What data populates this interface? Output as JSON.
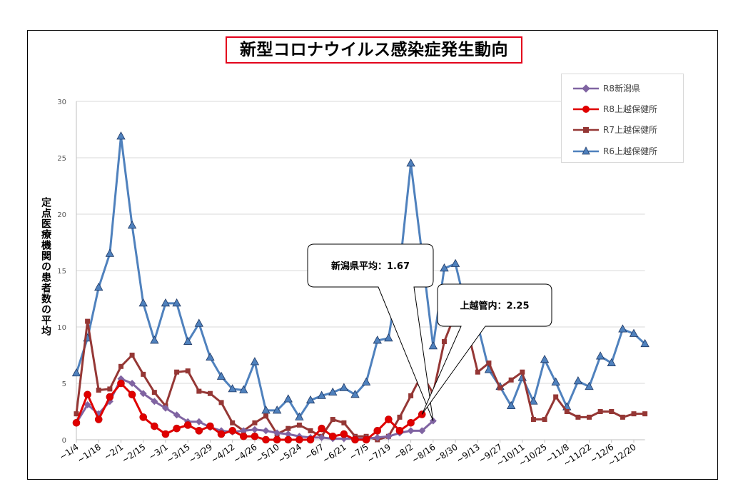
{
  "chart_data": {
    "type": "line",
    "title": "新型コロナウイルス感染症発生動向",
    "ylabel": "定点医療機関の患者数の平均",
    "xlabel": "",
    "ylim": [
      0,
      30
    ],
    "yticks": [
      0,
      5,
      10,
      15,
      20,
      25,
      30
    ],
    "grid": true,
    "legend_position": "top-right",
    "x_tick_labels": [
      "~1/4",
      "~1/18",
      "~2/1",
      "~2/15",
      "~3/1",
      "~3/15",
      "~3/29",
      "~4/12",
      "~4/26",
      "~5/10",
      "~5/24",
      "~6/7",
      "~6/21",
      "~7/5",
      "~7/19",
      "~8/2",
      "~8/16",
      "~8/30",
      "~9/13",
      "~9/27",
      "~10/11",
      "~10/25",
      "~11/8",
      "~11/22",
      "~12/6",
      "~12/20"
    ],
    "series": [
      {
        "name": "R8新潟県",
        "color": "#8064a2",
        "marker": "diamond",
        "values": [
          1.5,
          3.1,
          2.3,
          3.4,
          5.4,
          5.0,
          4.1,
          3.4,
          2.8,
          2.2,
          1.6,
          1.6,
          1.1,
          0.8,
          0.7,
          0.8,
          0.9,
          0.8,
          0.6,
          0.5,
          0.3,
          0.2,
          0.2,
          0.1,
          0.1,
          0.1,
          0.1,
          0.2,
          0.3,
          0.6,
          0.8,
          0.8,
          1.67
        ]
      },
      {
        "name": "R8上越保健所",
        "color": "#e00000",
        "marker": "circle",
        "values": [
          1.5,
          4.0,
          1.8,
          3.8,
          5.0,
          4.0,
          2.0,
          1.2,
          0.5,
          1.0,
          1.3,
          0.8,
          1.2,
          0.5,
          0.8,
          0.3,
          0.3,
          0.0,
          0.0,
          0.0,
          0.0,
          0.0,
          1.0,
          0.3,
          0.5,
          0.0,
          0.0,
          0.8,
          1.8,
          0.8,
          1.5,
          2.25
        ]
      },
      {
        "name": "R7上越保健所",
        "color": "#953735",
        "marker": "square",
        "values": [
          2.3,
          10.5,
          4.4,
          4.5,
          6.5,
          7.5,
          5.8,
          4.2,
          3.0,
          6.0,
          6.1,
          4.3,
          4.1,
          3.3,
          1.5,
          0.8,
          1.5,
          2.1,
          0.5,
          1.0,
          1.3,
          0.8,
          0.3,
          1.8,
          1.5,
          0.3,
          0.3,
          0.0,
          0.3,
          2.0,
          3.9,
          5.8,
          4.1,
          8.7,
          11.2,
          10.1,
          6.0,
          6.8,
          4.6,
          5.3,
          6.0,
          1.8,
          1.8,
          3.8,
          2.5,
          2.0,
          2.0,
          2.5,
          2.5,
          2.0,
          2.3,
          2.3
        ]
      },
      {
        "name": "R6上越保健所",
        "color": "#4f81bd",
        "marker": "triangle",
        "values": [
          5.9,
          9.0,
          13.5,
          16.5,
          26.9,
          19.0,
          12.1,
          8.8,
          12.1,
          12.1,
          8.7,
          10.3,
          7.3,
          5.6,
          4.5,
          4.4,
          6.9,
          2.6,
          2.6,
          3.6,
          2.0,
          3.5,
          3.9,
          4.2,
          4.6,
          4.0,
          5.1,
          8.8,
          9.0,
          15.2,
          24.5,
          16.5,
          8.3,
          15.2,
          15.6,
          11.5,
          10.2,
          6.2,
          4.7,
          3.0,
          5.5,
          3.4,
          7.1,
          5.1,
          2.9,
          5.2,
          4.7,
          7.4,
          6.8,
          9.8,
          9.4,
          8.5
        ]
      }
    ],
    "annotations": [
      {
        "text": "新潟県平均：1.67"
      },
      {
        "text": "上越管内：2.25"
      }
    ]
  },
  "axis_labels": {
    "y_tick_labels": [
      "0",
      "5",
      "10",
      "15",
      "20",
      "25",
      "30"
    ]
  }
}
